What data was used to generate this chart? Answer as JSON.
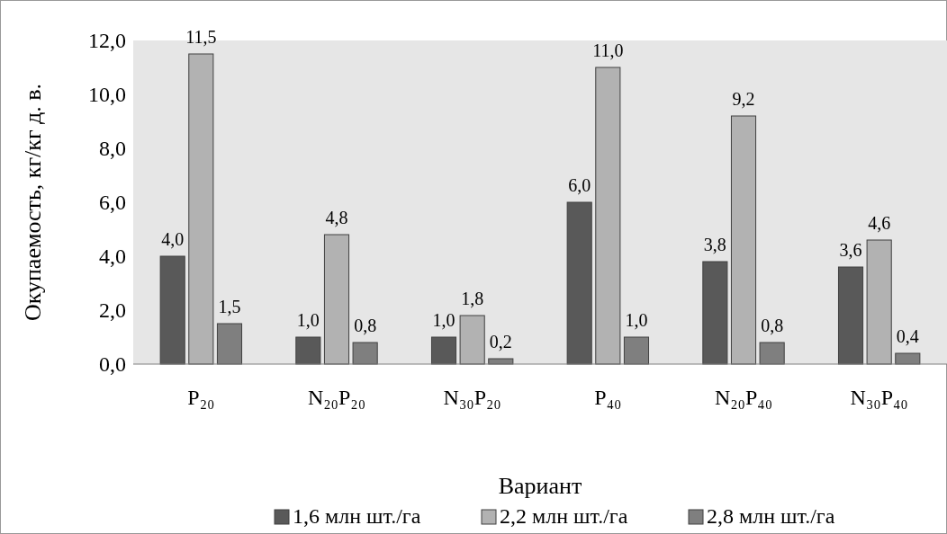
{
  "chart_data": {
    "type": "bar",
    "xlabel": "Вариант",
    "ylabel": "Окупаемость, кг/кг д. в.",
    "categories": [
      "P₂₀",
      "N₂₀P₂₀",
      "N₃₀P₂₀",
      "P₄₀",
      "N₂₀P₄₀",
      "N₃₀P₄₀"
    ],
    "series": [
      {
        "name": "1,6 млн шт./га",
        "color": "#595959",
        "values": [
          4.0,
          1.0,
          1.0,
          6.0,
          3.8,
          3.6
        ],
        "value_labels": [
          "4,0",
          "1,0",
          "1,0",
          "6,0",
          "3,8",
          "3,6"
        ]
      },
      {
        "name": "2,2 млн шт./га",
        "color": "#b2b2b2",
        "values": [
          11.5,
          4.8,
          1.8,
          11.0,
          9.2,
          4.6
        ],
        "value_labels": [
          "11,5",
          "4,8",
          "1,8",
          "11,0",
          "9,2",
          "4,6"
        ]
      },
      {
        "name": "2,8 млн шт./га",
        "color": "#7f7f7f",
        "values": [
          1.5,
          0.8,
          0.2,
          1.0,
          0.8,
          0.4
        ],
        "value_labels": [
          "1,5",
          "0,8",
          "0,2",
          "1,0",
          "0,8",
          "0,4"
        ]
      }
    ],
    "ylim": [
      0,
      12
    ],
    "yticks": [
      {
        "value": 0,
        "label": "0,0"
      },
      {
        "value": 2,
        "label": "2,0"
      },
      {
        "value": 4,
        "label": "4,0"
      },
      {
        "value": 6,
        "label": "6,0"
      },
      {
        "value": 8,
        "label": "8,0"
      },
      {
        "value": 10,
        "label": "10,0"
      },
      {
        "value": 12,
        "label": "12,0"
      }
    ],
    "grid": false,
    "legend": "bottom"
  }
}
